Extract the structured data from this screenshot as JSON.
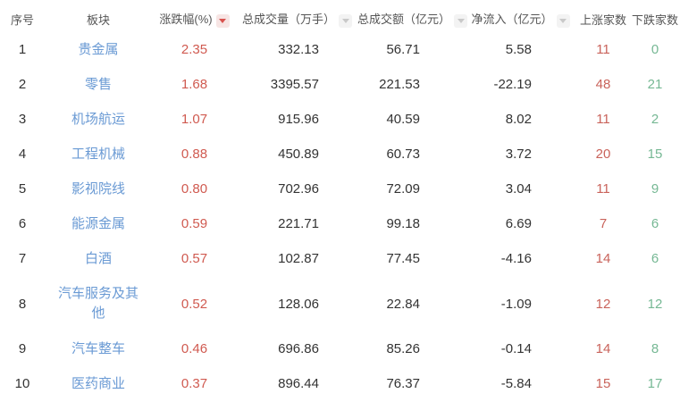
{
  "table": {
    "columns": [
      {
        "key": "seq",
        "label": "序号",
        "sort": "none",
        "sortable": false
      },
      {
        "key": "sector",
        "label": "板块",
        "sort": "none",
        "sortable": false
      },
      {
        "key": "change",
        "label": "涨跌幅(%)",
        "sort": "active",
        "sortable": true
      },
      {
        "key": "volume",
        "label": "总成交量（万手）",
        "sort": "inactive",
        "sortable": true
      },
      {
        "key": "amount",
        "label": "总成交额（亿元）",
        "sort": "inactive",
        "sortable": true
      },
      {
        "key": "inflow",
        "label": "净流入（亿元）",
        "sort": "inactive",
        "sortable": true
      },
      {
        "key": "up",
        "label": "上涨家数",
        "sort": "none",
        "sortable": false
      },
      {
        "key": "down",
        "label": "下跌家数",
        "sort": "none",
        "sortable": false
      }
    ],
    "rows": [
      {
        "seq": "1",
        "sector": "贵金属",
        "change": "2.35",
        "volume": "332.13",
        "amount": "56.71",
        "inflow": "5.58",
        "up": "11",
        "down": "0"
      },
      {
        "seq": "2",
        "sector": "零售",
        "change": "1.68",
        "volume": "3395.57",
        "amount": "221.53",
        "inflow": "-22.19",
        "up": "48",
        "down": "21"
      },
      {
        "seq": "3",
        "sector": "机场航运",
        "change": "1.07",
        "volume": "915.96",
        "amount": "40.59",
        "inflow": "8.02",
        "up": "11",
        "down": "2"
      },
      {
        "seq": "4",
        "sector": "工程机械",
        "change": "0.88",
        "volume": "450.89",
        "amount": "60.73",
        "inflow": "3.72",
        "up": "20",
        "down": "15"
      },
      {
        "seq": "5",
        "sector": "影视院线",
        "change": "0.80",
        "volume": "702.96",
        "amount": "72.09",
        "inflow": "3.04",
        "up": "11",
        "down": "9"
      },
      {
        "seq": "6",
        "sector": "能源金属",
        "change": "0.59",
        "volume": "221.71",
        "amount": "99.18",
        "inflow": "6.69",
        "up": "7",
        "down": "6"
      },
      {
        "seq": "7",
        "sector": "白酒",
        "change": "0.57",
        "volume": "102.87",
        "amount": "77.45",
        "inflow": "-4.16",
        "up": "14",
        "down": "6"
      },
      {
        "seq": "8",
        "sector": "汽车服务及其他",
        "change": "0.52",
        "volume": "128.06",
        "amount": "22.84",
        "inflow": "-1.09",
        "up": "12",
        "down": "12"
      },
      {
        "seq": "9",
        "sector": "汽车整车",
        "change": "0.46",
        "volume": "696.86",
        "amount": "85.26",
        "inflow": "-0.14",
        "up": "14",
        "down": "8"
      },
      {
        "seq": "10",
        "sector": "医药商业",
        "change": "0.37",
        "volume": "896.44",
        "amount": "76.37",
        "inflow": "-5.84",
        "up": "15",
        "down": "17"
      }
    ]
  },
  "colors": {
    "background": "#ffffff",
    "header_text": "#555555",
    "value_text": "#333333",
    "sector_link": "#6a9ad4",
    "change_up": "#d05a50",
    "up_count": "#c9635b",
    "down_count": "#76b894",
    "sort_active": "#d9534f",
    "sort_active_bg": "#f7e5e4",
    "sort_inactive": "#c9c9c9",
    "sort_inactive_bg": "#f3f3f3"
  }
}
